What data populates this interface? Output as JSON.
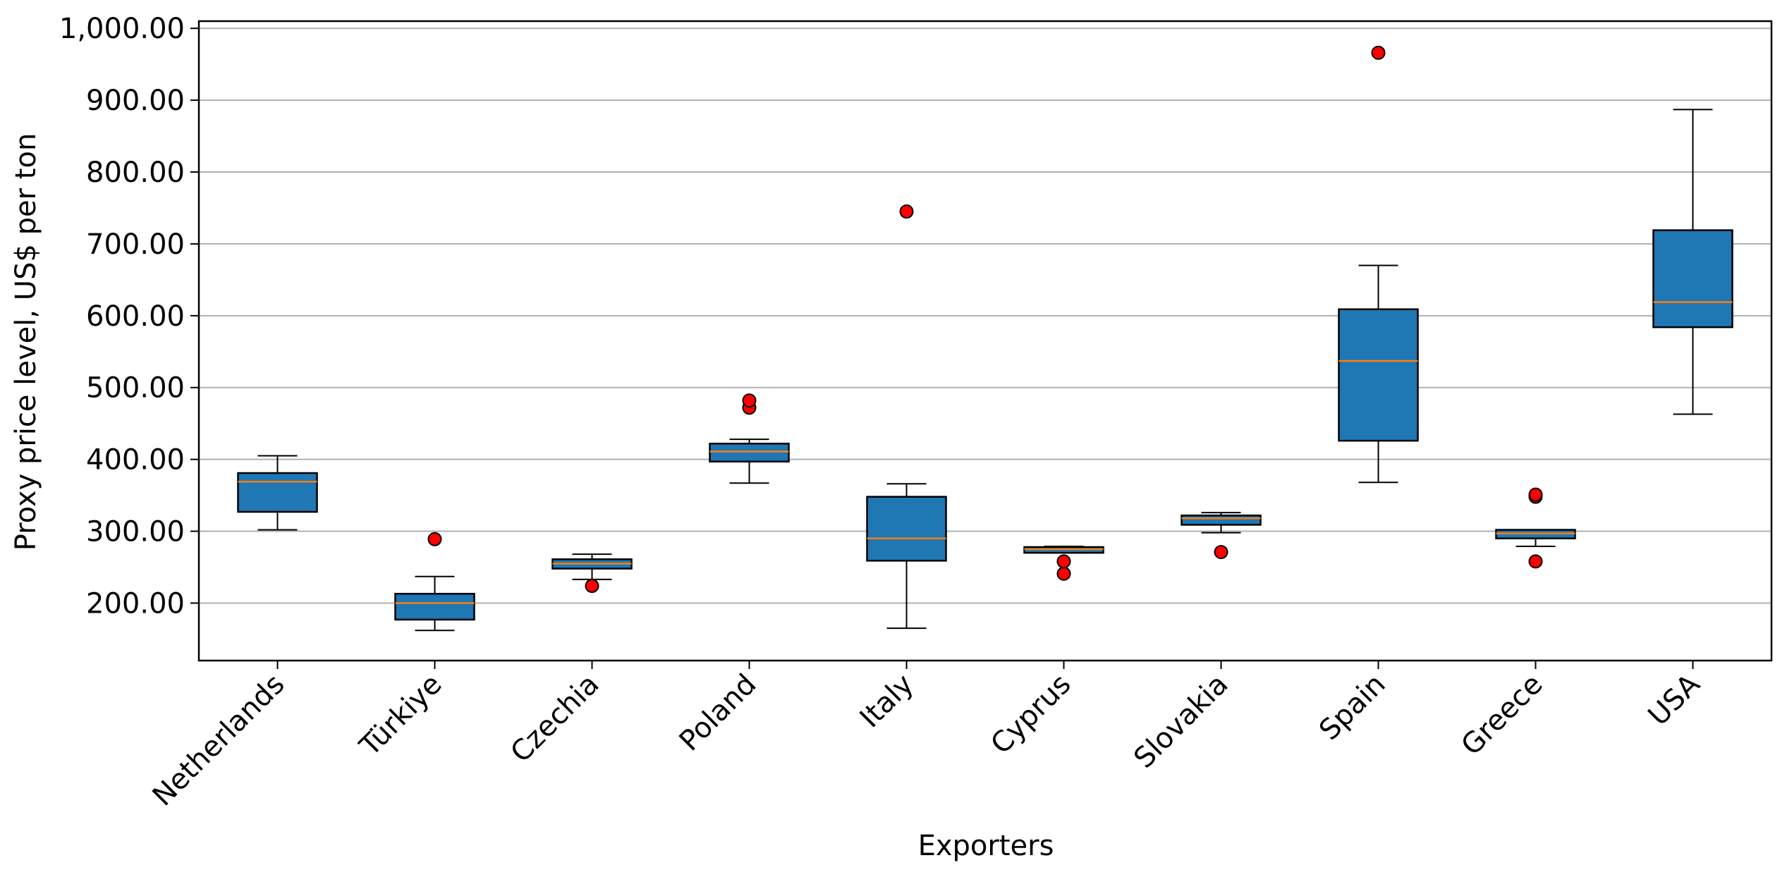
{
  "chart_data": {
    "type": "box",
    "title": "",
    "xlabel": "Exporters",
    "ylabel": "Proxy price level, US$ per ton",
    "ylim": [
      120,
      1010
    ],
    "yticks": [
      200,
      300,
      400,
      500,
      600,
      700,
      800,
      900,
      1000
    ],
    "ytick_labels": [
      "200.00",
      "300.00",
      "400.00",
      "500.00",
      "600.00",
      "700.00",
      "800.00",
      "900.00",
      "1,000.00"
    ],
    "grid": "horizontal",
    "colors": {
      "box_fill": "#1f77b4",
      "median": "#ff7f0e",
      "outlier": "#ff0000",
      "grid": "#b0b0b0"
    },
    "categories": [
      "Netherlands",
      "Türkiye",
      "Czechia",
      "Poland",
      "Italy",
      "Cyprus",
      "Slovakia",
      "Spain",
      "Greece",
      "USA"
    ],
    "boxes": [
      {
        "name": "Netherlands",
        "whisker_low": 302,
        "q1": 327,
        "median": 369,
        "q3": 381,
        "whisker_high": 405,
        "outliers": []
      },
      {
        "name": "Türkiye",
        "whisker_low": 162,
        "q1": 177,
        "median": 200,
        "q3": 213,
        "whisker_high": 237,
        "outliers": [
          289
        ]
      },
      {
        "name": "Czechia",
        "whisker_low": 233,
        "q1": 248,
        "median": 255,
        "q3": 261,
        "whisker_high": 268,
        "outliers": [
          224
        ]
      },
      {
        "name": "Poland",
        "whisker_low": 367,
        "q1": 397,
        "median": 411,
        "q3": 422,
        "whisker_high": 428,
        "outliers": [
          472,
          482
        ]
      },
      {
        "name": "Italy",
        "whisker_low": 165,
        "q1": 259,
        "median": 290,
        "q3": 348,
        "whisker_high": 366,
        "outliers": [
          745
        ]
      },
      {
        "name": "Cyprus",
        "whisker_low": 270,
        "q1": 270,
        "median": 275,
        "q3": 278,
        "whisker_high": 279,
        "outliers": [
          241,
          258
        ]
      },
      {
        "name": "Slovakia",
        "whisker_low": 298,
        "q1": 309,
        "median": 318,
        "q3": 322,
        "whisker_high": 326,
        "outliers": [
          271
        ]
      },
      {
        "name": "Spain",
        "whisker_low": 368,
        "q1": 426,
        "median": 537,
        "q3": 609,
        "whisker_high": 670,
        "outliers": [
          966
        ]
      },
      {
        "name": "Greece",
        "whisker_low": 279,
        "q1": 290,
        "median": 297,
        "q3": 302,
        "whisker_high": 302,
        "outliers": [
          258,
          348,
          351
        ]
      },
      {
        "name": "USA",
        "whisker_low": 463,
        "q1": 584,
        "median": 619,
        "q3": 719,
        "whisker_high": 887,
        "outliers": []
      }
    ]
  }
}
